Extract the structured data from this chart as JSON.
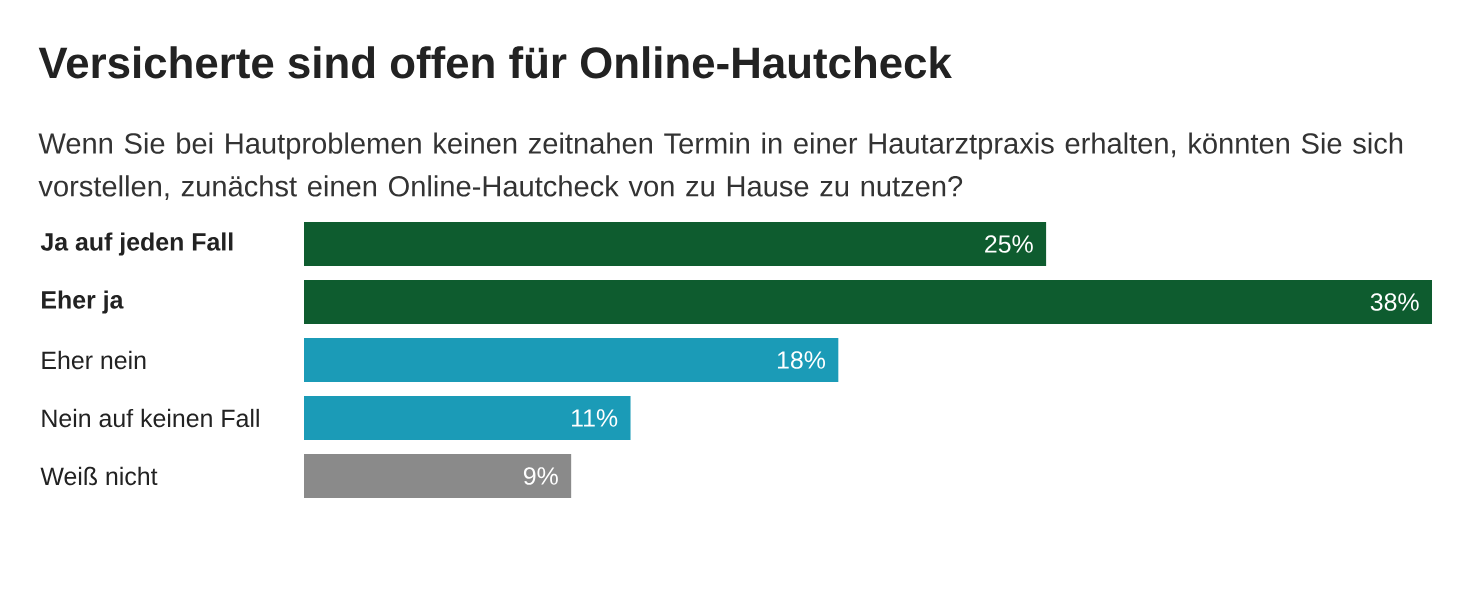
{
  "chart_data": {
    "type": "bar",
    "orientation": "horizontal",
    "title": "Versicherte sind offen für Online-Hautcheck",
    "subtitle": "Wenn Sie bei Hautproblemen keinen zeitnahen Termin in einer Hautarztpraxis erhalten, könnten Sie sich vorstellen, zunächst einen Online-Hautcheck von zu Hause zu nutzen?",
    "categories": [
      "**Ja auf jeden Fall**",
      "**Eher ja**",
      "Eher nein",
      "Nein auf keinen Fall",
      "Weiß nicht"
    ],
    "values": [
      25,
      38,
      18,
      11,
      9
    ],
    "value_labels": [
      "25%",
      "38%",
      "18%",
      "11%",
      "9%"
    ],
    "colors": [
      "#0e5c2f",
      "#0e5c2f",
      "#1b9bb7",
      "#1b9bb7",
      "#8a8a8a"
    ]
  }
}
